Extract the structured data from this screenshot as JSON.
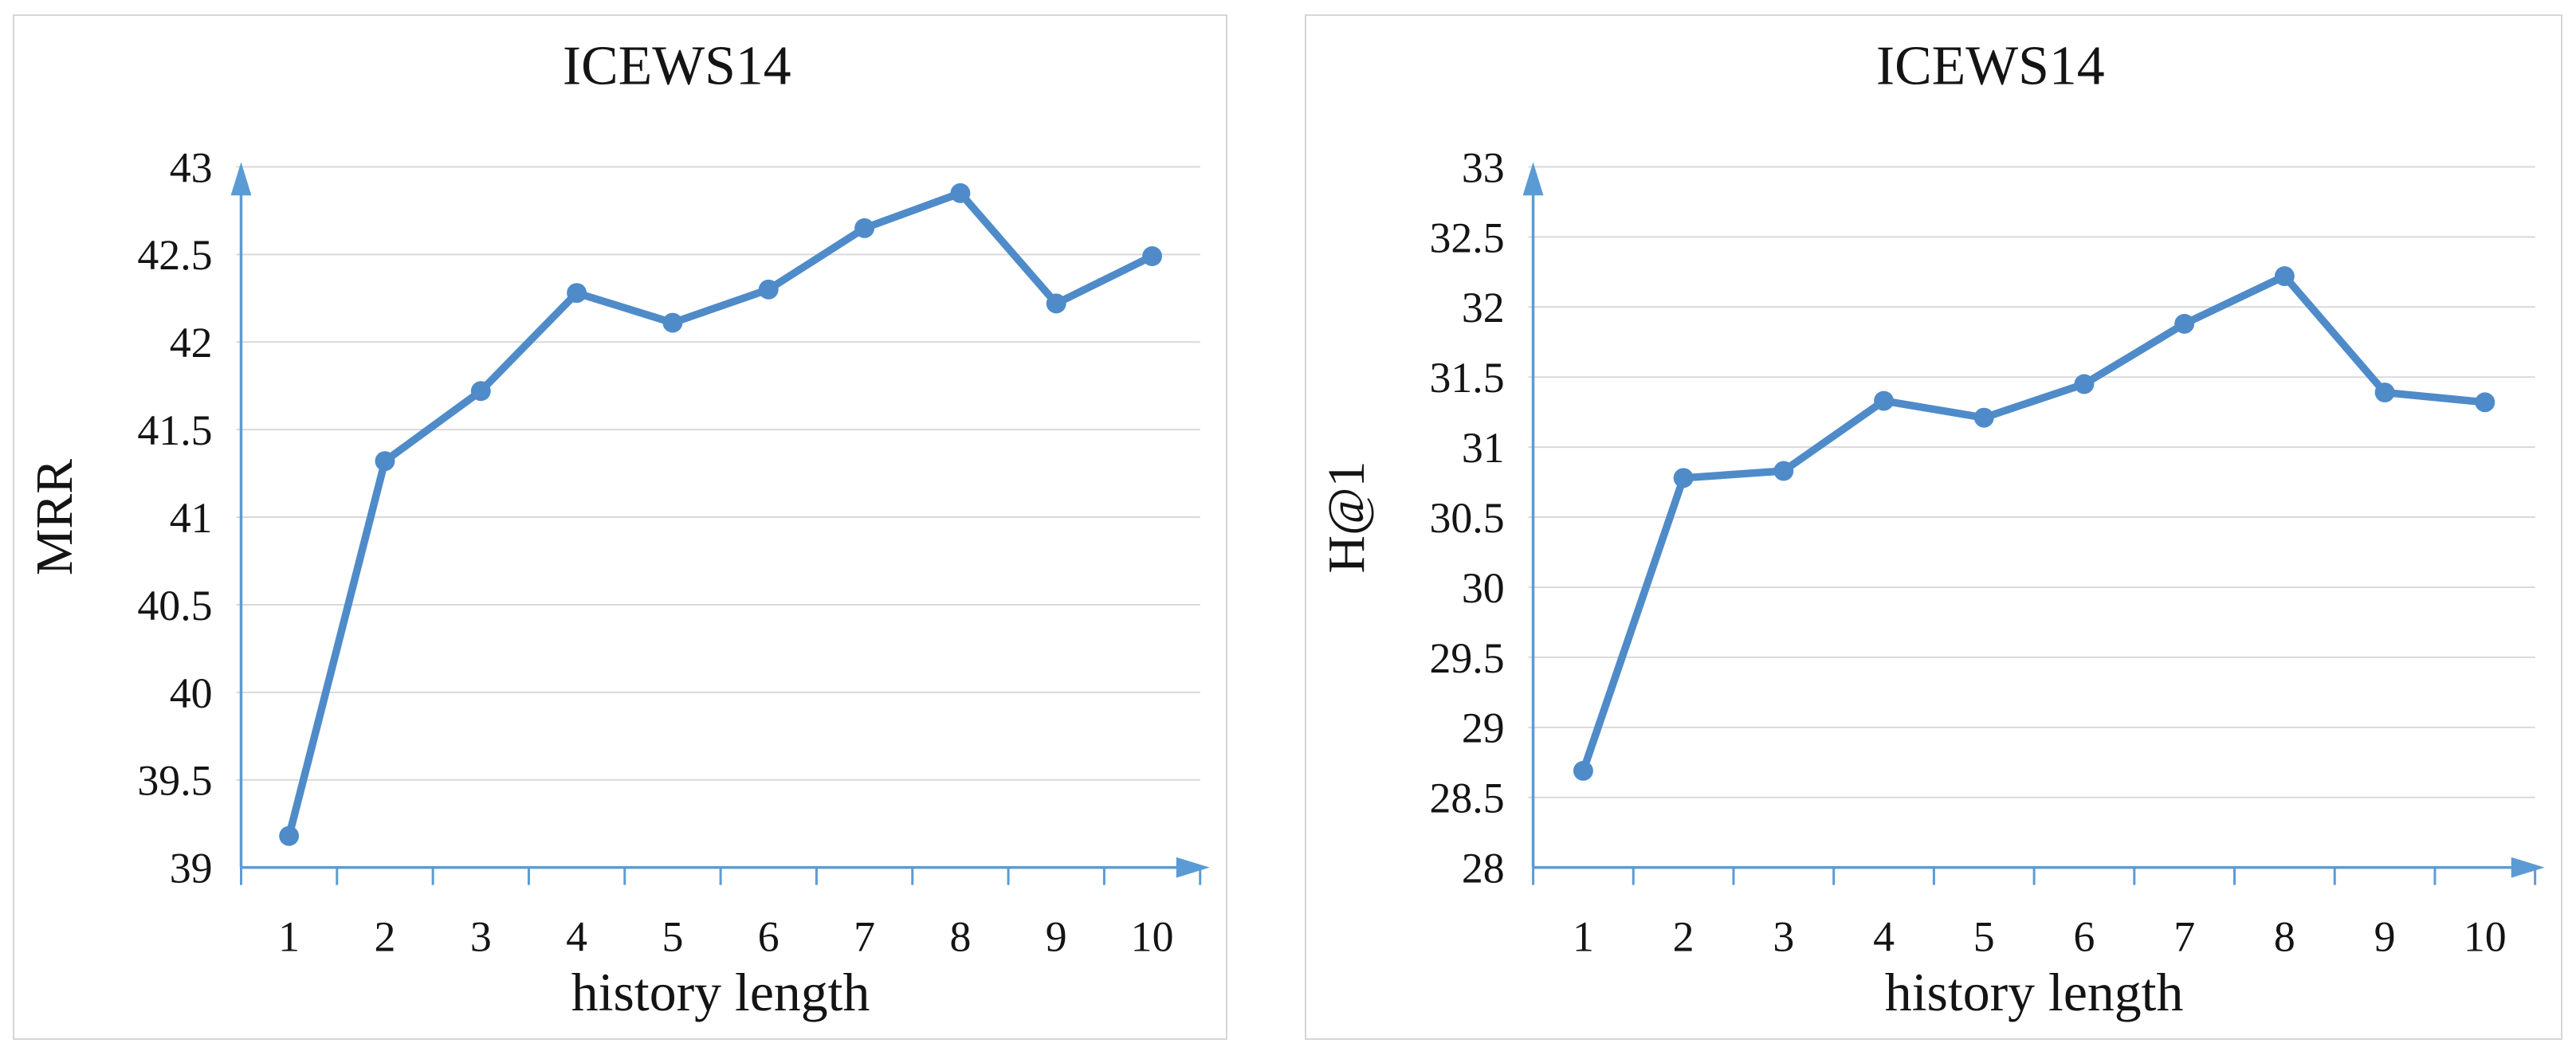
{
  "page": {
    "background": "#ffffff"
  },
  "colors": {
    "line": "#4f8bc9",
    "marker": "#4f8bc9",
    "axis": "#5b9bd5",
    "grid": "#d9d9d9",
    "panel_border": "#d6d6d6",
    "text": "#141414"
  },
  "chart_data": [
    {
      "type": "line",
      "title": "ICEWS14",
      "xlabel": "history length",
      "ylabel": "MRR",
      "x": [
        1,
        2,
        3,
        4,
        5,
        6,
        7,
        8,
        9,
        10
      ],
      "series": [
        {
          "name": "MRR",
          "values": [
            39.18,
            41.32,
            41.72,
            42.28,
            42.11,
            42.3,
            42.65,
            42.85,
            42.22,
            42.49
          ]
        }
      ],
      "ylim": [
        39,
        43
      ],
      "ytick_step": 0.5,
      "grid": true,
      "legend": "none"
    },
    {
      "type": "line",
      "title": "ICEWS14",
      "xlabel": "history length",
      "ylabel": "H@1",
      "x": [
        1,
        2,
        3,
        4,
        5,
        6,
        7,
        8,
        9,
        10
      ],
      "series": [
        {
          "name": "H@1",
          "values": [
            28.69,
            30.78,
            30.83,
            31.33,
            31.21,
            31.45,
            31.88,
            32.22,
            31.39,
            31.32
          ]
        }
      ],
      "ylim": [
        28,
        33
      ],
      "ytick_step": 0.5,
      "grid": true,
      "legend": "none"
    }
  ]
}
